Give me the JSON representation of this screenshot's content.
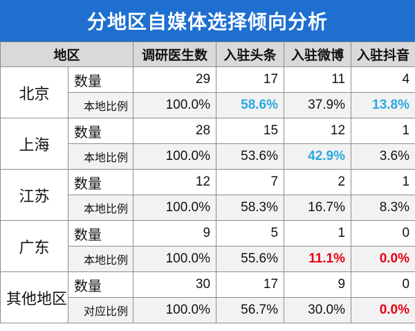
{
  "title": "分地区自媒体选择倾向分析",
  "header": {
    "region": "地区",
    "cols": [
      "调研医生数",
      "入驻头条",
      "入驻微博",
      "入驻抖音"
    ]
  },
  "rows": [
    {
      "region": "北京",
      "count_label": "数量",
      "counts": [
        "29",
        "17",
        "11",
        "4"
      ],
      "ratio_label": "本地比例",
      "ratios": [
        "100.0%",
        "58.6%",
        "37.9%",
        "13.8%"
      ],
      "ratio_colors": [
        "",
        "blue",
        "",
        "blue"
      ]
    },
    {
      "region": "上海",
      "count_label": "数量",
      "counts": [
        "28",
        "15",
        "12",
        "1"
      ],
      "ratio_label": "本地比例",
      "ratios": [
        "100.0%",
        "53.6%",
        "42.9%",
        "3.6%"
      ],
      "ratio_colors": [
        "",
        "",
        "blue",
        ""
      ]
    },
    {
      "region": "江苏",
      "count_label": "数量",
      "counts": [
        "12",
        "7",
        "2",
        "1"
      ],
      "ratio_label": "本地比例",
      "ratios": [
        "100.0%",
        "58.3%",
        "16.7%",
        "8.3%"
      ],
      "ratio_colors": [
        "",
        "",
        "",
        ""
      ]
    },
    {
      "region": "广东",
      "count_label": "数量",
      "counts": [
        "9",
        "5",
        "1",
        "0"
      ],
      "ratio_label": "本地比例",
      "ratios": [
        "100.0%",
        "55.6%",
        "11.1%",
        "0.0%"
      ],
      "ratio_colors": [
        "",
        "",
        "red",
        "red"
      ]
    },
    {
      "region": "其他地区",
      "count_label": "数量",
      "counts": [
        "30",
        "17",
        "9",
        "0"
      ],
      "ratio_label": "对应比例",
      "ratios": [
        "100.0%",
        "56.7%",
        "30.0%",
        "0.0%"
      ],
      "ratio_colors": [
        "",
        "",
        "",
        "red"
      ]
    }
  ],
  "colors": {
    "title_bg": "#1e6fd0",
    "header_bg": "#d9d9d9",
    "highlight_blue": "#29a8e0",
    "highlight_red": "#e60012"
  }
}
